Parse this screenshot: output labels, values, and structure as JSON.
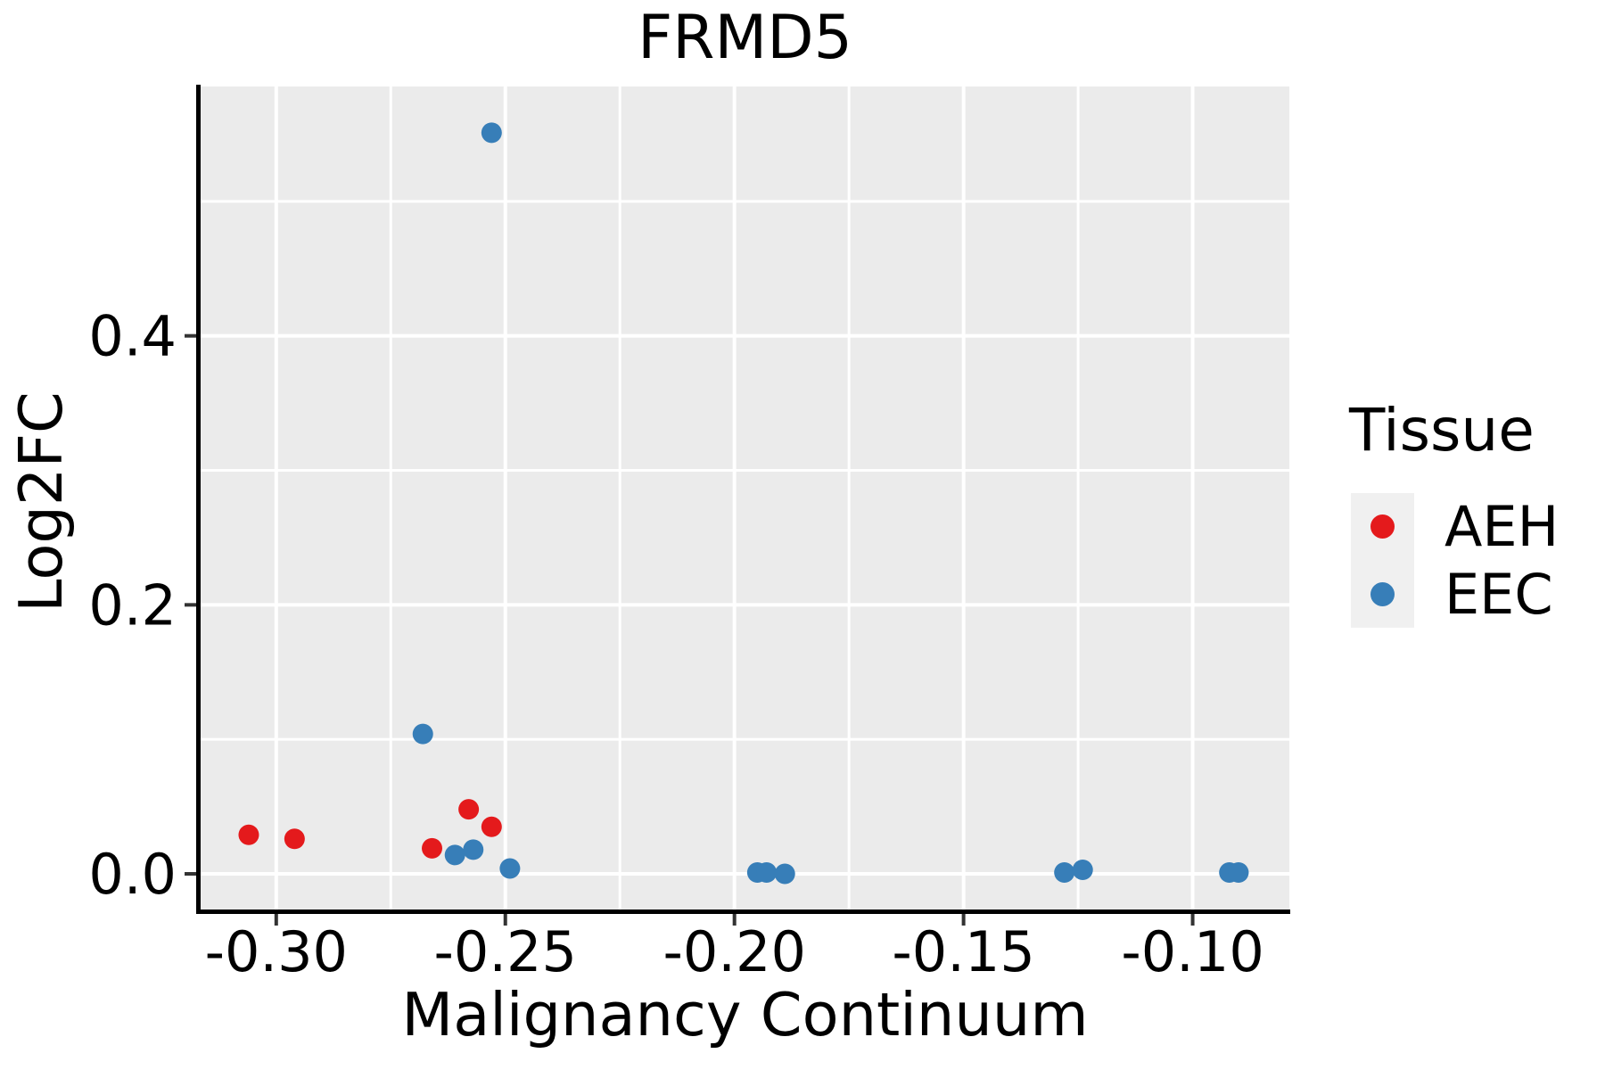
{
  "title": "FRMD5",
  "chart_data": {
    "type": "scatter",
    "title": "FRMD5",
    "xlabel": "Malignancy Continuum",
    "ylabel": "Log2FC",
    "xlim": [
      -0.3165,
      -0.0789
    ],
    "ylim": [
      -0.0265,
      0.5854
    ],
    "grid": true,
    "legend_position": "right",
    "x_ticks": {
      "values": [
        -0.3,
        -0.25,
        -0.2,
        -0.15,
        -0.1
      ],
      "labels": [
        "-0.30",
        "-0.25",
        "-0.20",
        "-0.15",
        "-0.10"
      ]
    },
    "y_ticks": {
      "values": [
        0.0,
        0.2,
        0.4
      ],
      "labels": [
        "0.0",
        "0.2",
        "0.4"
      ]
    },
    "x_minor": [
      -0.275,
      -0.225,
      -0.175,
      -0.125
    ],
    "y_minor": [
      0.1,
      0.3,
      0.5
    ],
    "series": [
      {
        "name": "AEH",
        "color": "#E41A1C",
        "points": [
          [
            -0.306,
            0.029
          ],
          [
            -0.296,
            0.026
          ],
          [
            -0.266,
            0.019
          ],
          [
            -0.258,
            0.048
          ],
          [
            -0.253,
            0.035
          ]
        ]
      },
      {
        "name": "EEC",
        "color": "#377EB8",
        "points": [
          [
            -0.253,
            0.551
          ],
          [
            -0.268,
            0.104
          ],
          [
            -0.261,
            0.014
          ],
          [
            -0.257,
            0.018
          ],
          [
            -0.249,
            0.004
          ],
          [
            -0.195,
            0.001
          ],
          [
            -0.193,
            0.001
          ],
          [
            -0.189,
            0.0
          ],
          [
            -0.128,
            0.001
          ],
          [
            -0.124,
            0.003
          ],
          [
            -0.092,
            0.001
          ],
          [
            -0.09,
            0.001
          ]
        ]
      }
    ]
  },
  "legend": {
    "title": "Tissue",
    "items": [
      {
        "label": "AEH",
        "color": "#E41A1C"
      },
      {
        "label": "EEC",
        "color": "#377EB8"
      }
    ]
  },
  "colors": {
    "panel_background": "#EBEBEB",
    "gridline": "#FFFFFF",
    "axis_line": "#000000",
    "tick_mark": "#333333",
    "text": "#000000",
    "legend_key_background": "#F0F0F0"
  }
}
